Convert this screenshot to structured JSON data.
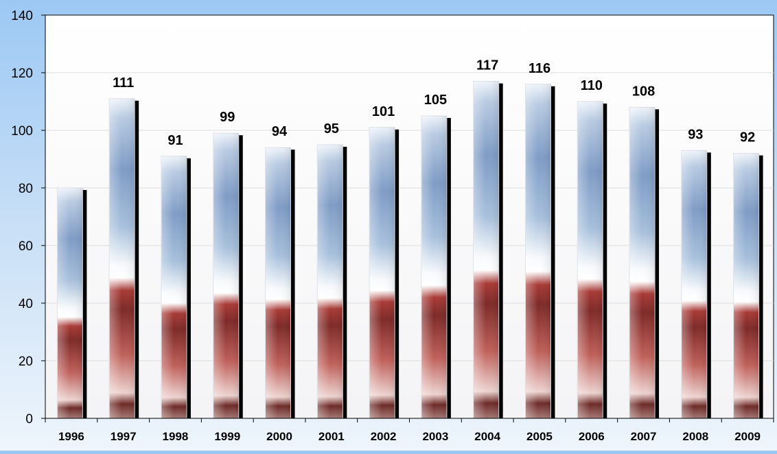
{
  "chart_data": {
    "type": "bar",
    "title": "",
    "xlabel": "",
    "ylabel": "",
    "categories": [
      "1996",
      "1997",
      "1998",
      "1999",
      "2000",
      "2001",
      "2002",
      "2003",
      "2004",
      "2005",
      "2006",
      "2007",
      "2008",
      "2009"
    ],
    "values": [
      80,
      111,
      91,
      99,
      94,
      95,
      101,
      105,
      117,
      116,
      110,
      108,
      93,
      92
    ],
    "value_labels": [
      "",
      "111",
      "91",
      "99",
      "94",
      "95",
      "101",
      "105",
      "117",
      "116",
      "110",
      "108",
      "93",
      "92"
    ],
    "ylim": [
      0,
      140
    ],
    "yticks": [
      "0",
      "20",
      "40",
      "60",
      "80",
      "100",
      "120",
      "140"
    ],
    "grid": true,
    "legend": "none",
    "colors": {
      "bar_top": "#7f9cc6",
      "bar_mid": "#ffffff",
      "bar_bottom": "#a83a36",
      "bar_shadow": "#000000",
      "background": "#9cc8f4"
    }
  }
}
